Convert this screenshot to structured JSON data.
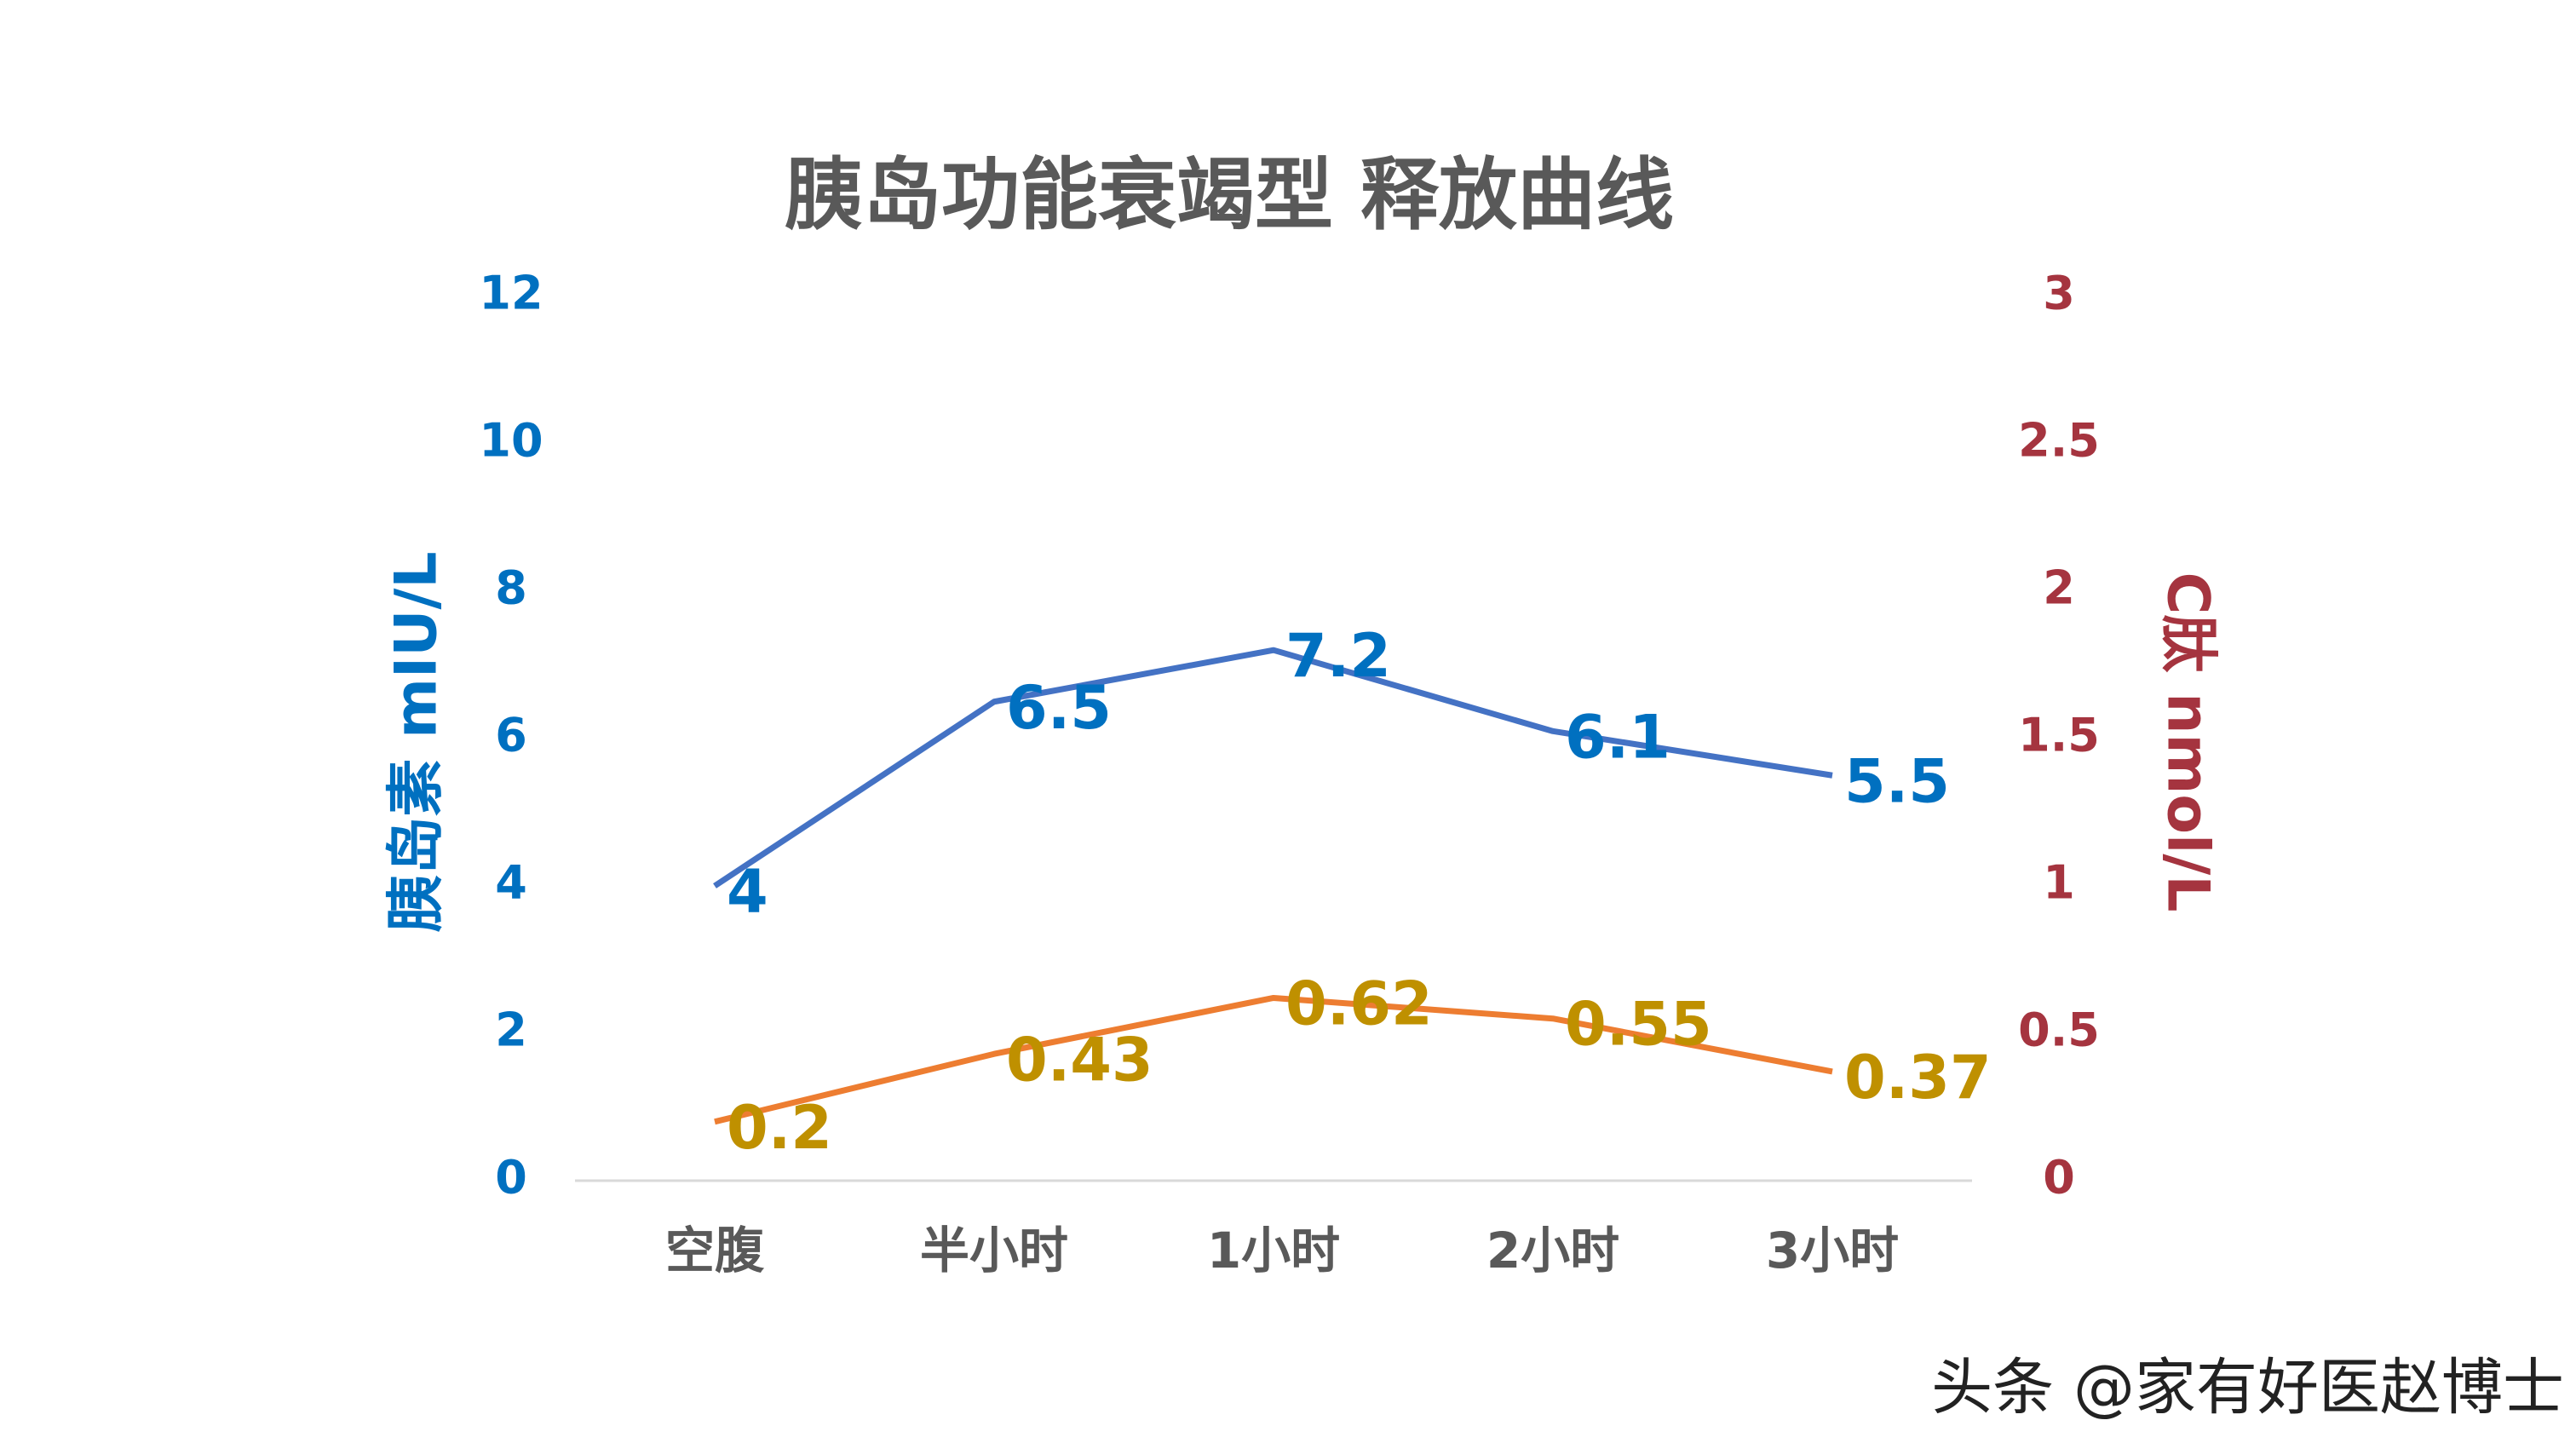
{
  "chart_data": {
    "type": "line",
    "title": "胰岛功能衰竭型 释放曲线",
    "y_label": "胰岛素 mIU/L",
    "y2_label": "C肽 nmol/L",
    "categories": [
      "空腹",
      "半小时",
      "1小时",
      "2小时",
      "3小时"
    ],
    "series": [
      {
        "color": "#4472c4",
        "label_color": "#0070c0",
        "values": [
          4,
          6.5,
          7.2,
          6.1,
          5.5
        ]
      },
      {
        "color": "#ed7d31",
        "label_color": "#bf9000",
        "axis": "y2",
        "values": [
          0.2,
          0.43,
          0.62,
          0.55,
          0.37
        ]
      }
    ],
    "ylim": [
      0,
      12
    ],
    "yticks": [
      0,
      2,
      4,
      6,
      8,
      10,
      12
    ],
    "y_color": "#0070c0",
    "y2lim": [
      0,
      3
    ],
    "y2ticks": [
      0,
      0.5,
      1,
      1.5,
      2,
      2.5,
      3
    ],
    "y2_color": "#a5343f",
    "grid": false,
    "watermark": "头条 @家有好医赵博士"
  }
}
